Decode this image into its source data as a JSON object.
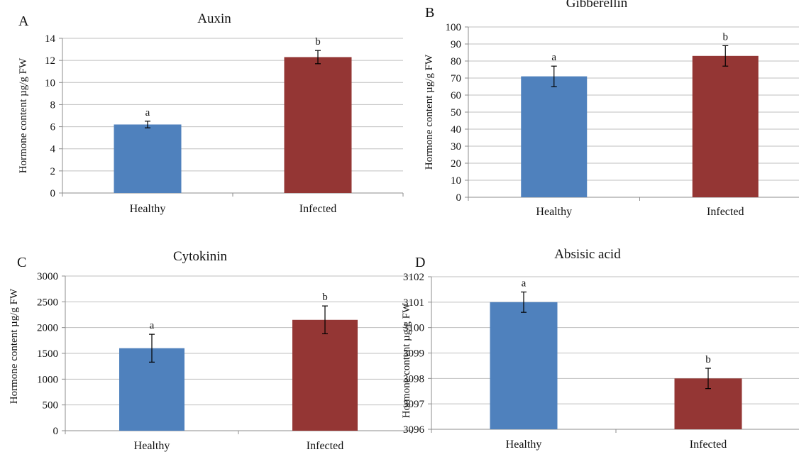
{
  "colors": {
    "healthy": "#4f81bd",
    "infected": "#943634",
    "grid": "#bfbfbf",
    "axis": "#8c8c8c",
    "error_bar": "#000000"
  },
  "chart_data": [
    {
      "panel_letter": "A",
      "type": "bar",
      "title": "Auxin",
      "ylabel": "Hormone content µg/g FW",
      "xlabel": "",
      "categories": [
        "Healthy",
        "Infected"
      ],
      "values": [
        6.2,
        12.3
      ],
      "errors": [
        0.3,
        0.6
      ],
      "significance": [
        "a",
        "b"
      ],
      "ylim": [
        0,
        14
      ],
      "yticks": [
        0,
        2,
        4,
        6,
        8,
        10,
        12,
        14
      ],
      "grid": true
    },
    {
      "panel_letter": "B",
      "type": "bar",
      "title": "Gibberellin",
      "ylabel": "Hormone content µg/g FW",
      "xlabel": "",
      "categories": [
        "Healthy",
        "Infected"
      ],
      "values": [
        71,
        83
      ],
      "errors": [
        6,
        6
      ],
      "significance": [
        "a",
        "b"
      ],
      "ylim": [
        0,
        100
      ],
      "yticks": [
        0,
        10,
        20,
        30,
        40,
        50,
        60,
        70,
        80,
        90,
        100
      ],
      "grid": true
    },
    {
      "panel_letter": "C",
      "type": "bar",
      "title": "Cytokinin",
      "ylabel": "Hormone content µg/g FW",
      "xlabel": "",
      "categories": [
        "Healthy",
        "Infected"
      ],
      "values": [
        1600,
        2150
      ],
      "errors": [
        270,
        270
      ],
      "significance": [
        "a",
        "b"
      ],
      "ylim": [
        0,
        3000
      ],
      "yticks": [
        0,
        500,
        1000,
        1500,
        2000,
        2500,
        3000
      ],
      "grid": true
    },
    {
      "panel_letter": "D",
      "type": "bar",
      "title": "Absisic acid",
      "ylabel": "Hormone content µg/g FW",
      "xlabel": "",
      "categories": [
        "Healthy",
        "Infected"
      ],
      "values": [
        3101,
        3098
      ],
      "errors": [
        0.4,
        0.4
      ],
      "significance": [
        "a",
        "b"
      ],
      "ylim": [
        3096,
        3102
      ],
      "yticks": [
        3096,
        3097,
        3098,
        3099,
        3100,
        3101,
        3102
      ],
      "grid": true
    }
  ]
}
